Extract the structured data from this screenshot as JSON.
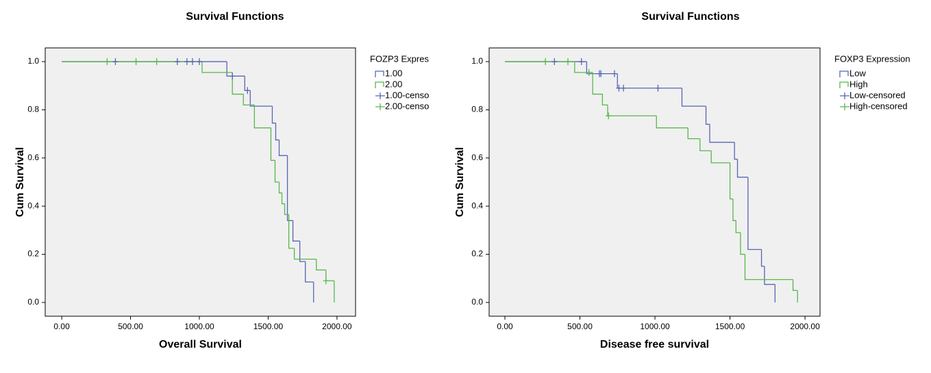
{
  "chart_data": [
    {
      "type": "step",
      "title": "Survival Functions",
      "x_label": "Overall Survival",
      "y_label": "Cum Survival",
      "legend_title": "FOZP3 Expres",
      "xlim": [
        -120,
        2135
      ],
      "ylim": [
        -0.057,
        1.057
      ],
      "xticks": [
        {
          "value": 0,
          "label": "0.00"
        },
        {
          "value": 500,
          "label": "500.00"
        },
        {
          "value": 1000,
          "label": "1000.00"
        },
        {
          "value": 1500,
          "label": "1500.00"
        },
        {
          "value": 2000,
          "label": "2000.00"
        }
      ],
      "yticks": [
        {
          "value": 0,
          "label": "0.0"
        },
        0.2,
        0.4,
        0.6,
        0.8,
        {
          "value": 1,
          "label": "1.0"
        }
      ],
      "series": [
        {
          "name": "1.00",
          "color": "#5565b5",
          "style": "step",
          "x": [
            0,
            1200,
            1330,
            1370,
            1530,
            1555,
            1580,
            1640,
            1680,
            1730,
            1770,
            1830
          ],
          "values": [
            1,
            0.94,
            0.88,
            0.815,
            0.745,
            0.675,
            0.61,
            0.34,
            0.255,
            0.17,
            0.085,
            0
          ]
        },
        {
          "name": "2.00",
          "color": "#55b84a",
          "style": "step",
          "x": [
            0,
            1020,
            1240,
            1320,
            1400,
            1520,
            1550,
            1580,
            1600,
            1620,
            1650,
            1690,
            1850,
            1920,
            1980
          ],
          "values": [
            1,
            0.955,
            0.865,
            0.82,
            0.725,
            0.59,
            0.5,
            0.455,
            0.41,
            0.365,
            0.225,
            0.18,
            0.135,
            0.09,
            0
          ]
        },
        {
          "name": "1.00-censo",
          "color": "#5565b5",
          "style": "censored",
          "x": [
            390,
            840,
            910,
            950,
            1000,
            1240,
            1350
          ],
          "values": [
            1,
            1,
            1,
            1,
            1,
            0.94,
            0.88
          ]
        },
        {
          "name": "2.00-censo",
          "color": "#55b84a",
          "style": "censored",
          "x": [
            330,
            540,
            690,
            1920
          ],
          "values": [
            1,
            1,
            1,
            0.09
          ]
        }
      ]
    },
    {
      "type": "step",
      "title": "Survival Functions",
      "x_label": "Disease free survival",
      "y_label": "Cum Survival",
      "legend_title": "FOXP3 Expression",
      "xlim": [
        -105,
        2100
      ],
      "ylim": [
        -0.057,
        1.057
      ],
      "xticks": [
        {
          "value": 0,
          "label": "0.00"
        },
        {
          "value": 500,
          "label": "500.00"
        },
        {
          "value": 1000,
          "label": "1000.00"
        },
        {
          "value": 1500,
          "label": "1500.00"
        },
        {
          "value": 2000,
          "label": "2000.00"
        }
      ],
      "yticks": [
        {
          "value": 0,
          "label": "0.0"
        },
        0.2,
        0.4,
        0.6,
        0.8,
        {
          "value": 1,
          "label": "1.0"
        }
      ],
      "series": [
        {
          "name": "Low",
          "color": "#5565b5",
          "style": "step",
          "x": [
            0,
            545,
            750,
            1180,
            1340,
            1365,
            1530,
            1550,
            1620,
            1710,
            1730,
            1800
          ],
          "values": [
            1,
            0.95,
            0.89,
            0.815,
            0.74,
            0.665,
            0.595,
            0.52,
            0.22,
            0.15,
            0.075,
            0
          ]
        },
        {
          "name": "High",
          "color": "#55b84a",
          "style": "step",
          "x": [
            0,
            465,
            585,
            650,
            685,
            1010,
            1220,
            1300,
            1375,
            1500,
            1520,
            1540,
            1570,
            1600,
            1920,
            1950
          ],
          "values": [
            1,
            0.955,
            0.865,
            0.82,
            0.775,
            0.725,
            0.68,
            0.63,
            0.58,
            0.43,
            0.34,
            0.29,
            0.2,
            0.095,
            0.05,
            0
          ]
        },
        {
          "name": "Low-censored",
          "color": "#5565b5",
          "style": "censored",
          "x": [
            330,
            510,
            630,
            640,
            730,
            760,
            790,
            1020
          ],
          "values": [
            1,
            1,
            0.95,
            0.95,
            0.95,
            0.89,
            0.89,
            0.89
          ]
        },
        {
          "name": "High-censored",
          "color": "#55b84a",
          "style": "censored",
          "x": [
            270,
            420,
            560,
            690
          ],
          "values": [
            1,
            1,
            0.955,
            0.775
          ]
        }
      ]
    }
  ]
}
